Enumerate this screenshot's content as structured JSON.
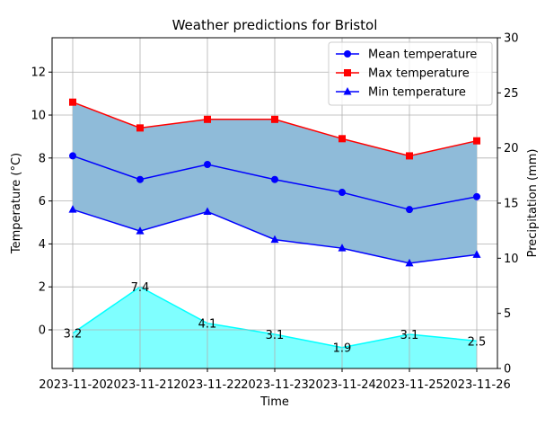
{
  "chart_data": {
    "type": "line",
    "title": "Weather predictions for Bristol",
    "xlabel": "Time",
    "ylabel": "Temperature (°C)",
    "y2label": "Precipitation (mm)",
    "x": [
      "2023-11-20",
      "2023-11-21",
      "2023-11-22",
      "2023-11-23",
      "2023-11-24",
      "2023-11-25",
      "2023-11-26"
    ],
    "ylim": [
      -1.8,
      13.6
    ],
    "yticks": [
      0,
      2,
      4,
      6,
      8,
      10,
      12
    ],
    "y2lim": [
      0,
      30
    ],
    "y2ticks": [
      0,
      5,
      10,
      15,
      20,
      25,
      30
    ],
    "grid": true,
    "legend_position": "top-right",
    "series": [
      {
        "name": "Mean temperature",
        "axis": "left",
        "marker": "circle",
        "color": "#0000ff",
        "values": [
          8.1,
          7.0,
          7.7,
          7.0,
          6.4,
          5.6,
          6.2
        ]
      },
      {
        "name": "Max temperature",
        "axis": "left",
        "marker": "square",
        "color": "#ff0000",
        "values": [
          10.6,
          9.4,
          9.8,
          9.8,
          8.9,
          8.1,
          8.8
        ]
      },
      {
        "name": "Min temperature",
        "axis": "left",
        "marker": "triangle",
        "color": "#0000ff",
        "values": [
          5.6,
          4.6,
          5.5,
          4.2,
          3.8,
          3.1,
          3.5
        ]
      }
    ],
    "temperature_band": {
      "between": [
        "Min temperature",
        "Max temperature"
      ],
      "color": "#8fbbd9"
    },
    "precipitation": {
      "axis": "right",
      "type": "area",
      "color": "#00ffff",
      "values": [
        3.2,
        7.4,
        4.1,
        3.1,
        1.9,
        3.1,
        2.5
      ],
      "labels": [
        "3.2",
        "7.4",
        "4.1",
        "3.1",
        "1.9",
        "3.1",
        "2.5"
      ]
    }
  }
}
